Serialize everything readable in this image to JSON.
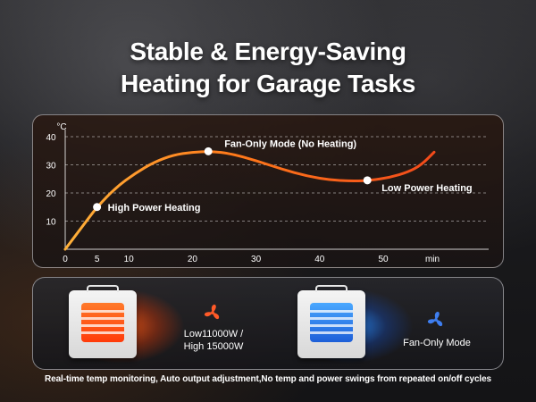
{
  "title": {
    "line1": "Stable & Energy-Saving",
    "line2": "Heating for Garage Tasks"
  },
  "chart_data": {
    "type": "line",
    "ylabel": "°C",
    "xlabel": "min",
    "x_ticks": [
      0,
      5,
      10,
      20,
      30,
      40,
      50
    ],
    "y_ticks": [
      10,
      20,
      30,
      40
    ],
    "xlim": [
      0,
      60
    ],
    "ylim": [
      0,
      40
    ],
    "grid": "dashed-horizontal",
    "series": [
      {
        "x": [
          0,
          3,
          5,
          8,
          11,
          14,
          17,
          20,
          23,
          26,
          30,
          34,
          38,
          42,
          46,
          48,
          51,
          54,
          56,
          58
        ],
        "values": [
          0,
          9,
          15,
          22,
          27,
          31,
          33.5,
          34.5,
          34.8,
          34,
          31.5,
          28.5,
          26,
          24.5,
          24.2,
          24.5,
          25.5,
          27.5,
          30,
          34.5
        ],
        "color": "#f47a1f"
      }
    ],
    "annotations": [
      {
        "x": 5,
        "y": 15,
        "text": "High Power Heating"
      },
      {
        "x": 22.5,
        "y": 34.8,
        "text": "Fan-Only Mode (No Heating)"
      },
      {
        "x": 47.5,
        "y": 24.5,
        "text": "Low Power Heating"
      }
    ]
  },
  "modes": {
    "heat": {
      "label_line1": "Low11000W  /",
      "label_line2": "High 15000W",
      "fan_color": "#ff5a28"
    },
    "fan": {
      "label": "Fan-Only Mode",
      "fan_color": "#3e7ef0"
    }
  },
  "footer": "Real-time temp monitoring, Auto output adjustment,No temp and power swings from repeated on/off cycles"
}
